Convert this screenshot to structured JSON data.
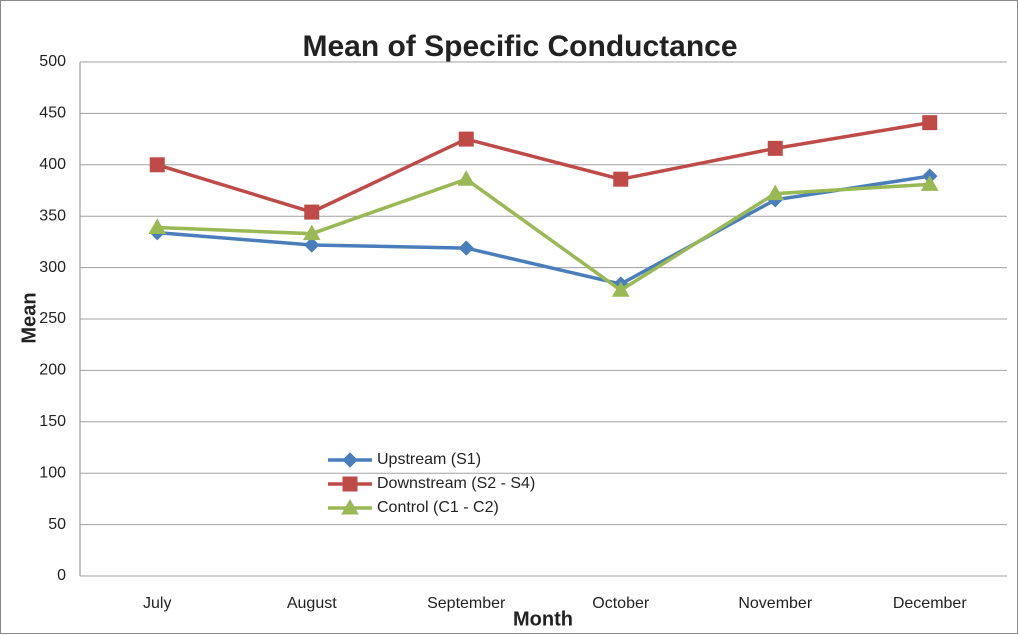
{
  "chart_data": {
    "type": "line",
    "title": "Mean of Specific Conductance",
    "x_label": "Month",
    "y_label": "Mean",
    "categories": [
      "July",
      "August",
      "September",
      "October",
      "November",
      "December"
    ],
    "series": [
      {
        "name": "Upstream (S1)",
        "color": "#4a7ebb",
        "marker": "diamond",
        "values": [
          334,
          322,
          319,
          284,
          366,
          389
        ]
      },
      {
        "name": "Downstream (S2 - S4)",
        "color": "#be4b48",
        "marker": "square",
        "values": [
          400,
          354,
          425,
          386,
          416,
          441
        ]
      },
      {
        "name": "Control (C1 - C2)",
        "color": "#98b954",
        "marker": "triangle",
        "values": [
          339,
          333,
          386,
          278,
          372,
          381
        ]
      }
    ],
    "ylim": [
      0,
      500
    ],
    "yticks": [
      0,
      50,
      100,
      150,
      200,
      250,
      300,
      350,
      400,
      450,
      500
    ],
    "grid": true
  }
}
